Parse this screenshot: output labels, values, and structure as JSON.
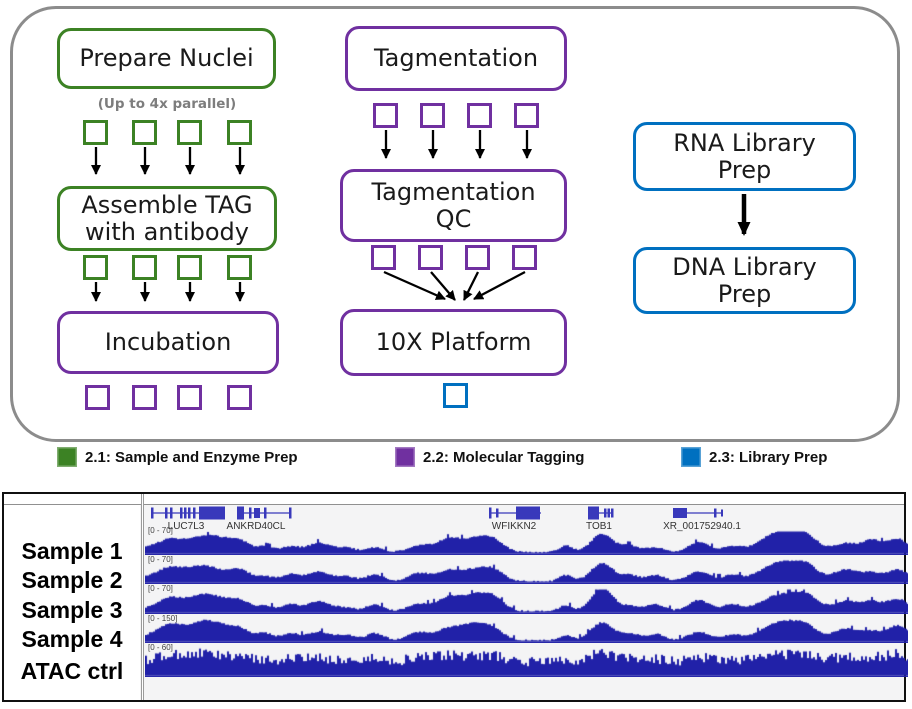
{
  "colors": {
    "green": "#3c8224",
    "purple": "#7030a0",
    "blue": "#0070c0",
    "container_border": "#8c8c8c",
    "signal": "#2121a8",
    "gene": "#3939bb"
  },
  "flowchart": {
    "note": "(Up to 4x parallel)",
    "nodes": {
      "prepare_nuclei": {
        "label": "Prepare Nuclei"
      },
      "assemble_tag": {
        "line1": "Assemble TAG",
        "line2": "with antibody"
      },
      "incubation": {
        "label": "Incubation"
      },
      "tagmentation": {
        "label": "Tagmentation"
      },
      "tagmentation_qc": {
        "line1": "Tagmentation",
        "line2": "QC"
      },
      "tenx_platform": {
        "label": "10X Platform"
      },
      "rna_library_prep": {
        "line1": "RNA Library",
        "line2": "Prep"
      },
      "dna_library_prep": {
        "line1": "DNA Library",
        "line2": "Prep"
      }
    },
    "legend": [
      {
        "label": "2.1: Sample and Enzyme Prep",
        "color": "#3c8224"
      },
      {
        "label": "2.2: Molecular Tagging",
        "color": "#7030a0"
      },
      {
        "label": "2.3: Library Prep",
        "color": "#0070c0"
      }
    ]
  },
  "genome_browser": {
    "genes": [
      "LUC7L3",
      "ANKRD40CL",
      "WFIKKN2",
      "TOB1",
      "XR_001752940.1"
    ],
    "tracks": [
      {
        "name": "Sample 1",
        "range": "[0 - 70]"
      },
      {
        "name": "Sample 2",
        "range": "[0 - 70]"
      },
      {
        "name": "Sample 3",
        "range": "[0 - 70]"
      },
      {
        "name": "Sample 4",
        "range": "[0 - 150]"
      },
      {
        "name": "ATAC ctrl",
        "range": "[0 - 60]"
      }
    ],
    "signal_color": "#2121a8"
  }
}
